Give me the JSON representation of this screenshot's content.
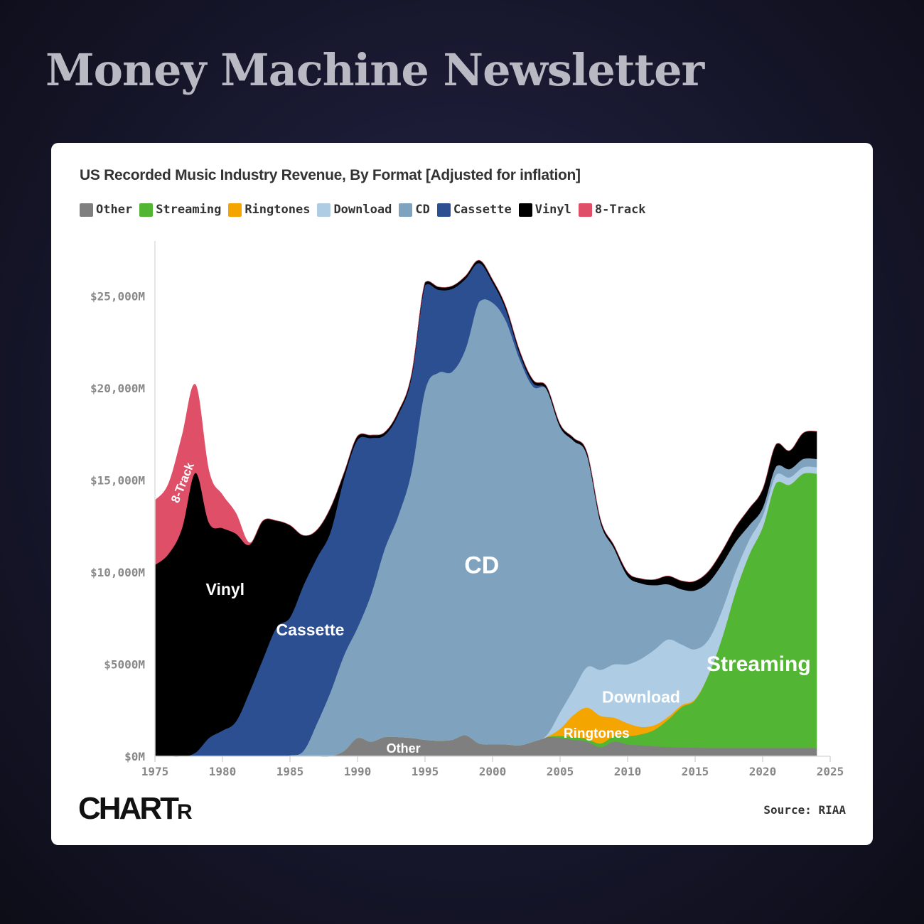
{
  "page": {
    "headline": "Money Machine Newsletter",
    "logo_big": "CHART",
    "logo_small": "R",
    "source": "Source: RIAA"
  },
  "colors": {
    "Other": "#7f7f7f",
    "Streaming": "#52b534",
    "Ringtones": "#f5a500",
    "Download": "#aecde4",
    "CD": "#7fa3be",
    "Cassette": "#2c4f91",
    "Vinyl": "#000000",
    "8-Track": "#e04f68"
  },
  "chart_data": {
    "type": "area",
    "stacked": true,
    "title": "US Recorded Music Industry Revenue, By Format [Adjusted for inflation]",
    "legend": [
      "Other",
      "Streaming",
      "Ringtones",
      "Download",
      "CD",
      "Cassette",
      "Vinyl",
      "8-Track"
    ],
    "legend_position": "top-left",
    "xlim": [
      1975,
      2025
    ],
    "ylim": [
      0,
      28000
    ],
    "grid": false,
    "x_ticks": [
      1975,
      1980,
      1985,
      1990,
      1995,
      2000,
      2005,
      2010,
      2015,
      2020,
      2025
    ],
    "y_ticks": [
      {
        "value": 0,
        "label": "$0M"
      },
      {
        "value": 5000,
        "label": "$5000M"
      },
      {
        "value": 10000,
        "label": "$10,000M"
      },
      {
        "value": 15000,
        "label": "$15,000M"
      },
      {
        "value": 20000,
        "label": "$20,000M"
      },
      {
        "value": 25000,
        "label": "$25,000M"
      }
    ],
    "x": [
      1975,
      1976,
      1977,
      1978,
      1979,
      1980,
      1981,
      1982,
      1983,
      1984,
      1985,
      1986,
      1987,
      1988,
      1989,
      1990,
      1991,
      1992,
      1993,
      1994,
      1995,
      1996,
      1997,
      1998,
      1999,
      2000,
      2001,
      2002,
      2003,
      2004,
      2005,
      2006,
      2007,
      2008,
      2009,
      2010,
      2011,
      2012,
      2013,
      2014,
      2015,
      2016,
      2017,
      2018,
      2019,
      2020,
      2021,
      2022,
      2023,
      2024
    ],
    "series": [
      {
        "name": "Other",
        "values": [
          0,
          0,
          0,
          0,
          0,
          0,
          0,
          0,
          0,
          0,
          0,
          0,
          0,
          0,
          300,
          1000,
          800,
          1050,
          1050,
          1000,
          900,
          850,
          900,
          1150,
          700,
          650,
          650,
          600,
          800,
          1050,
          1000,
          900,
          800,
          500,
          800,
          650,
          600,
          550,
          500,
          480,
          470,
          460,
          460,
          460,
          460,
          460,
          460,
          460,
          460,
          460
        ]
      },
      {
        "name": "Streaming",
        "values": [
          0,
          0,
          0,
          0,
          0,
          0,
          0,
          0,
          0,
          0,
          0,
          0,
          0,
          0,
          0,
          0,
          0,
          0,
          0,
          0,
          0,
          0,
          0,
          0,
          0,
          0,
          0,
          0,
          0,
          0,
          100,
          150,
          150,
          200,
          300,
          450,
          600,
          900,
          1500,
          2200,
          2600,
          4000,
          6000,
          8500,
          10500,
          12000,
          14400,
          14300,
          14900,
          14900
        ]
      },
      {
        "name": "Ringtones",
        "values": [
          0,
          0,
          0,
          0,
          0,
          0,
          0,
          0,
          0,
          0,
          0,
          0,
          0,
          0,
          0,
          0,
          0,
          0,
          0,
          0,
          0,
          0,
          0,
          0,
          0,
          0,
          0,
          0,
          0,
          0,
          400,
          1200,
          1700,
          1500,
          1000,
          700,
          400,
          250,
          150,
          100,
          50,
          0,
          0,
          0,
          0,
          0,
          0,
          0,
          0,
          0
        ]
      },
      {
        "name": "Download",
        "values": [
          0,
          0,
          0,
          0,
          0,
          0,
          0,
          0,
          0,
          0,
          0,
          0,
          0,
          0,
          0,
          0,
          0,
          0,
          0,
          0,
          0,
          0,
          0,
          0,
          0,
          0,
          0,
          0,
          0,
          100,
          900,
          1400,
          2200,
          2500,
          2900,
          3200,
          3700,
          4100,
          4200,
          3300,
          2700,
          1900,
          1500,
          1100,
          800,
          600,
          450,
          400,
          350,
          350
        ]
      },
      {
        "name": "CD",
        "values": [
          0,
          0,
          0,
          0,
          0,
          0,
          0,
          0,
          0,
          0,
          50,
          300,
          1800,
          3500,
          5200,
          6000,
          8000,
          10200,
          12000,
          14500,
          19000,
          20000,
          20000,
          21000,
          24000,
          24000,
          23000,
          21000,
          19300,
          18800,
          15500,
          13500,
          11500,
          8000,
          6300,
          4800,
          4100,
          3500,
          3000,
          3000,
          3200,
          3100,
          2500,
          1600,
          800,
          450,
          450,
          450,
          450,
          450
        ]
      },
      {
        "name": "Cassette",
        "values": [
          0,
          0,
          0,
          200,
          1000,
          1400,
          1900,
          3500,
          5300,
          7000,
          7500,
          9000,
          9000,
          8700,
          9600,
          10200,
          8500,
          6200,
          5500,
          5100,
          5700,
          4500,
          4500,
          3800,
          2100,
          1100,
          600,
          300,
          200,
          0,
          0,
          0,
          0,
          0,
          0,
          0,
          0,
          0,
          0,
          0,
          0,
          0,
          0,
          0,
          0,
          0,
          0,
          0,
          0,
          0
        ]
      },
      {
        "name": "Vinyl",
        "values": [
          10400,
          11000,
          12400,
          15200,
          11700,
          11000,
          10200,
          8000,
          7500,
          5800,
          5000,
          2700,
          1500,
          1300,
          300,
          200,
          150,
          150,
          150,
          150,
          150,
          150,
          150,
          150,
          150,
          150,
          150,
          150,
          150,
          150,
          150,
          150,
          150,
          150,
          150,
          200,
          250,
          300,
          450,
          450,
          500,
          600,
          700,
          800,
          900,
          1000,
          1200,
          1000,
          1400,
          1500
        ]
      },
      {
        "name": "8-Track",
        "values": [
          3500,
          3800,
          5000,
          4800,
          2800,
          1800,
          1100,
          100,
          0,
          0,
          0,
          0,
          0,
          0,
          0,
          0,
          0,
          0,
          0,
          0,
          0,
          0,
          0,
          0,
          0,
          0,
          0,
          0,
          0,
          0,
          0,
          0,
          0,
          0,
          0,
          0,
          0,
          0,
          0,
          0,
          0,
          0,
          0,
          0,
          0,
          0,
          0,
          0,
          0,
          0
        ]
      }
    ],
    "annotations": [
      {
        "text": "8-Track",
        "series": "8-Track",
        "x": 1977.1,
        "y": 14850,
        "rotate": -68,
        "size": 17
      },
      {
        "text": "Vinyl",
        "series": "Vinyl",
        "x": 1980.2,
        "y": 9000,
        "rotate": 0,
        "size": 23
      },
      {
        "text": "Cassette",
        "series": "Cassette",
        "x": 1986.5,
        "y": 6800,
        "rotate": 0,
        "size": 23
      },
      {
        "text": "CD",
        "series": "CD",
        "x": 1999.2,
        "y": 10300,
        "rotate": 0,
        "size": 34
      },
      {
        "text": "Other",
        "series": "Other",
        "x": 1993.4,
        "y": 380,
        "rotate": 0,
        "size": 18
      },
      {
        "text": "Ringtones",
        "series": "Ringtones",
        "x": 2007.7,
        "y": 1200,
        "rotate": 0,
        "size": 19
      },
      {
        "text": "Download",
        "series": "Download",
        "x": 2011.0,
        "y": 3150,
        "rotate": 0,
        "size": 23
      },
      {
        "text": "Streaming",
        "series": "Streaming",
        "x": 2019.7,
        "y": 4950,
        "rotate": 0,
        "size": 30
      }
    ]
  }
}
